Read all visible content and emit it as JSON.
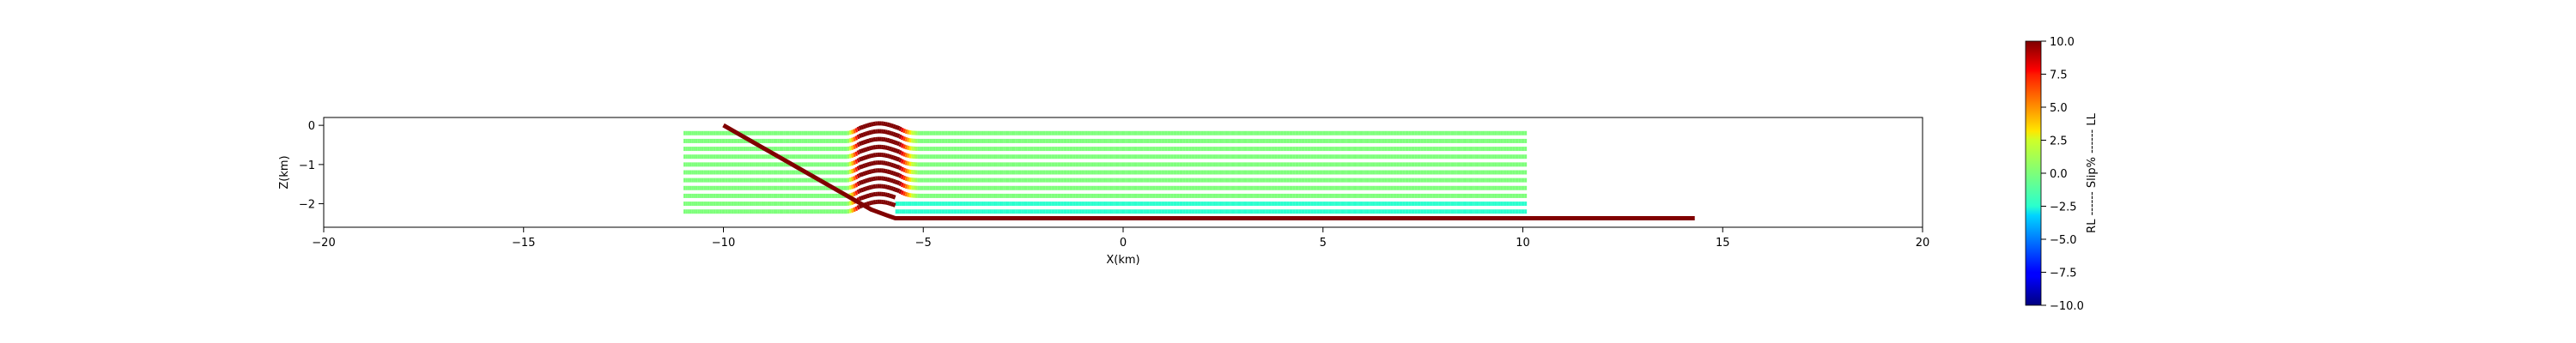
{
  "chart_data": {
    "type": "line",
    "title": "",
    "xlabel": "X(km)",
    "ylabel": "Z(km)",
    "xlim": [
      -20,
      20
    ],
    "ylim": [
      -2.6,
      0.2
    ],
    "xticks": [
      -20,
      -15,
      -10,
      -5,
      0,
      5,
      10,
      15,
      20
    ],
    "yticks": [
      0,
      -1,
      -2
    ],
    "xtick_labels": [
      "−20",
      "−15",
      "−10",
      "−5",
      "0",
      "5",
      "10",
      "15",
      "20"
    ],
    "ytick_labels": [
      "0",
      "−1",
      "−2"
    ],
    "grid": false,
    "fault": {
      "color": "#800000",
      "x": [
        -10.0,
        -6.3,
        -5.9,
        -5.7,
        14.3
      ],
      "z": [
        0.0,
        -2.15,
        -2.3,
        -2.37,
        -2.37
      ]
    },
    "layers": {
      "x_start": -11.0,
      "x_end": 10.1,
      "depths": [
        -0.2,
        -0.4,
        -0.6,
        -0.8,
        -1.0,
        -1.2,
        -1.4,
        -1.6,
        -1.8,
        -2.0,
        -2.2
      ],
      "base_slip": 0.0,
      "slip_profile": [
        {
          "x": -6.9,
          "slip": 0.0
        },
        {
          "x": -6.6,
          "slip": 10.0
        },
        {
          "x": -5.6,
          "slip": 10.0
        },
        {
          "x": -5.3,
          "slip": 2.5
        },
        {
          "x": -5.1,
          "slip": 0.0
        }
      ],
      "deep_slip": {
        "below_depth": -1.9,
        "x_from": -5.7,
        "x_to": 10.1,
        "slip": -2.5
      }
    },
    "colorbar": {
      "colormap": "jet",
      "label": "RL ------ Slip% ------ LL",
      "vmin": -10.0,
      "vmax": 10.0,
      "ticks": [
        10.0,
        7.5,
        5.0,
        2.5,
        0.0,
        -2.5,
        -5.0,
        -7.5,
        -10.0
      ],
      "tick_labels": [
        "10.0",
        "7.5",
        "5.0",
        "2.5",
        "0.0",
        "−2.5",
        "−5.0",
        "−7.5",
        "−10.0"
      ]
    }
  }
}
